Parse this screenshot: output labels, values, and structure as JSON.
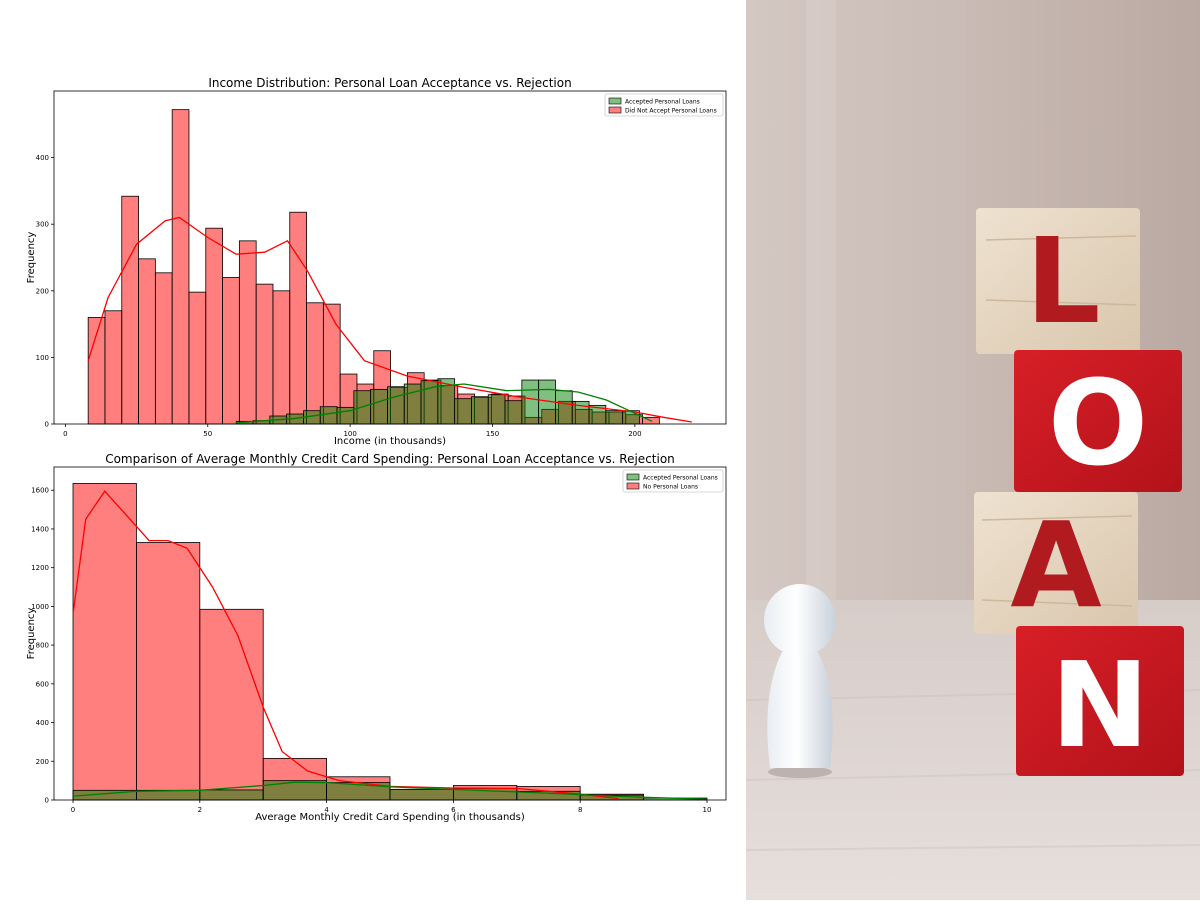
{
  "chart_data": [
    {
      "type": "bar",
      "title": "Income Distribution: Personal Loan Acceptance vs. Rejection",
      "xlabel": "Income (in thousands)",
      "ylabel": "Frequency",
      "xlim": [
        -4,
        232
      ],
      "ylim": [
        0,
        500
      ],
      "xticks": [
        0,
        50,
        100,
        150,
        200
      ],
      "yticks": [
        0,
        100,
        200,
        300,
        400
      ],
      "grid": false,
      "legend": "top-right",
      "series": [
        {
          "name": "Accepted Personal Loans",
          "color": "#008000",
          "bin_edges": [
            60,
            65.9,
            71.8,
            77.7,
            83.6,
            89.5,
            95.4,
            101.3,
            107.2,
            113.1,
            119,
            124.9,
            130.8,
            136.7,
            142.6,
            148.5,
            154.4,
            160.3,
            166.2,
            172.1,
            178,
            183.9,
            189.8,
            195.7,
            201.6
          ],
          "counts": [
            4,
            5,
            12,
            15,
            20,
            26,
            25,
            50,
            52,
            56,
            60,
            65,
            68,
            38,
            41,
            44,
            35,
            66,
            66,
            50,
            34,
            28,
            20,
            20
          ],
          "kde_x": [
            60,
            80,
            100,
            115,
            130,
            140,
            155,
            170,
            180,
            190,
            200,
            206
          ],
          "kde_y": [
            2,
            8,
            20,
            40,
            56,
            60,
            50,
            52,
            48,
            36,
            16,
            4
          ]
        },
        {
          "name": "Did Not Accept Personal Loans",
          "color": "#ff0000",
          "bin_edges": [
            8,
            13.9,
            19.8,
            25.7,
            31.6,
            37.5,
            43.4,
            49.3,
            55.2,
            61.1,
            67,
            72.9,
            78.8,
            84.7,
            90.6,
            96.5,
            102.4,
            108.3,
            114.2,
            120.1,
            126,
            131.9,
            137.8,
            143.7,
            149.6,
            155.5,
            161.4,
            167.3,
            173.2,
            179.1,
            185,
            190.9,
            196.8,
            202.7,
            208.6
          ],
          "counts": [
            160,
            170,
            342,
            248,
            227,
            472,
            198,
            294,
            220,
            275,
            210,
            200,
            318,
            182,
            180,
            75,
            60,
            110,
            55,
            77,
            66,
            58,
            45,
            40,
            45,
            42,
            10,
            22,
            34,
            22,
            18,
            18,
            14,
            10
          ],
          "kde_x": [
            8,
            15,
            25,
            35,
            40,
            50,
            60,
            70,
            78,
            85,
            95,
            105,
            120,
            140,
            160,
            180,
            200,
            210,
            220
          ],
          "kde_y": [
            95,
            190,
            270,
            305,
            310,
            280,
            255,
            258,
            275,
            230,
            150,
            95,
            72,
            55,
            40,
            28,
            18,
            10,
            3
          ]
        }
      ]
    },
    {
      "type": "bar",
      "title": "Comparison of Average Monthly Credit Card Spending: Personal Loan Acceptance vs. Rejection",
      "xlabel": "Average Monthly Credit Card Spending (in thousands)",
      "ylabel": "Frequency",
      "xlim": [
        -0.3,
        10.3
      ],
      "ylim": [
        0,
        1720
      ],
      "xticks": [
        0,
        2,
        4,
        6,
        8,
        10
      ],
      "yticks": [
        0,
        200,
        400,
        600,
        800,
        1000,
        1200,
        1400,
        1600
      ],
      "grid": false,
      "legend": "top-right",
      "series": [
        {
          "name": "Accepted Personal Loans",
          "color": "#008000",
          "bin_edges": [
            0,
            1,
            2,
            3,
            4,
            5,
            6,
            7,
            8,
            9,
            10
          ],
          "counts": [
            50,
            50,
            52,
            100,
            90,
            55,
            60,
            45,
            25,
            10
          ],
          "kde_x": [
            0,
            1,
            2,
            3,
            3.5,
            4,
            5,
            6,
            7,
            8,
            9,
            10
          ],
          "kde_y": [
            20,
            45,
            50,
            75,
            92,
            90,
            68,
            55,
            42,
            28,
            14,
            4
          ]
        },
        {
          "name": "No Personal Loans",
          "color": "#ff0000",
          "bin_edges": [
            0,
            1,
            2,
            3,
            4,
            5,
            6,
            7,
            8,
            9
          ],
          "counts": [
            1635,
            1330,
            985,
            215,
            120,
            55,
            75,
            70,
            30
          ],
          "kde_x": [
            0,
            0.2,
            0.5,
            0.9,
            1.2,
            1.5,
            1.8,
            2.2,
            2.6,
            3,
            3.3,
            3.7,
            4.2,
            5,
            6,
            7,
            8,
            8.6
          ],
          "kde_y": [
            960,
            1450,
            1595,
            1450,
            1340,
            1340,
            1300,
            1100,
            850,
            480,
            250,
            150,
            100,
            70,
            62,
            60,
            30,
            8
          ]
        }
      ]
    }
  ],
  "photo": {
    "blocks": [
      "L",
      "O",
      "A",
      "N"
    ],
    "red": "#c8161e",
    "wood": "#e4d4be"
  }
}
